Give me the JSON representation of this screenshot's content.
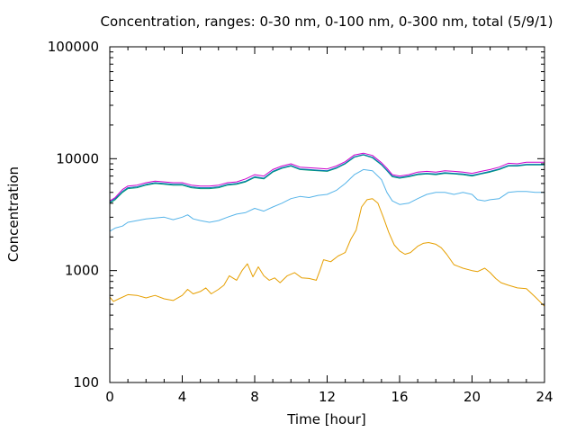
{
  "chart_data": {
    "type": "line",
    "title": "Concentration, ranges: 0-30 nm, 0-100 nm, 0-300 nm, total (5/9/1)",
    "xlabel": "Time [hour]",
    "ylabel": "Concentration",
    "xlim": [
      0,
      24
    ],
    "ylim": [
      100,
      100000
    ],
    "yscale": "log",
    "xticks": [
      0,
      4,
      8,
      12,
      16,
      20,
      24
    ],
    "xtick_labels": [
      "0",
      "4",
      "8",
      "12",
      "16",
      "20",
      "24"
    ],
    "yticks": [
      100,
      1000,
      10000,
      100000
    ],
    "ytick_labels": [
      "100",
      "1000",
      "10000",
      "100000"
    ],
    "grid": false,
    "legend": "none",
    "series": [
      {
        "color": "#e69f00",
        "points": [
          [
            0,
            580
          ],
          [
            0.2,
            530
          ],
          [
            0.5,
            560
          ],
          [
            1,
            610
          ],
          [
            1.5,
            600
          ],
          [
            2,
            570
          ],
          [
            2.5,
            600
          ],
          [
            3,
            560
          ],
          [
            3.5,
            540
          ],
          [
            4,
            600
          ],
          [
            4.3,
            680
          ],
          [
            4.6,
            620
          ],
          [
            5,
            650
          ],
          [
            5.3,
            700
          ],
          [
            5.6,
            620
          ],
          [
            6,
            680
          ],
          [
            6.3,
            740
          ],
          [
            6.6,
            900
          ],
          [
            7,
            820
          ],
          [
            7.3,
            1000
          ],
          [
            7.6,
            1150
          ],
          [
            7.9,
            880
          ],
          [
            8.2,
            1080
          ],
          [
            8.5,
            900
          ],
          [
            8.8,
            820
          ],
          [
            9.1,
            860
          ],
          [
            9.4,
            780
          ],
          [
            9.8,
            900
          ],
          [
            10.2,
            960
          ],
          [
            10.6,
            860
          ],
          [
            11,
            850
          ],
          [
            11.4,
            820
          ],
          [
            11.6,
            1000
          ],
          [
            11.8,
            1250
          ],
          [
            12.2,
            1200
          ],
          [
            12.6,
            1350
          ],
          [
            13,
            1450
          ],
          [
            13.3,
            1900
          ],
          [
            13.6,
            2300
          ],
          [
            13.9,
            3700
          ],
          [
            14.2,
            4300
          ],
          [
            14.5,
            4400
          ],
          [
            14.8,
            4000
          ],
          [
            15.1,
            3000
          ],
          [
            15.4,
            2200
          ],
          [
            15.7,
            1700
          ],
          [
            16,
            1500
          ],
          [
            16.3,
            1400
          ],
          [
            16.6,
            1450
          ],
          [
            17,
            1650
          ],
          [
            17.3,
            1750
          ],
          [
            17.6,
            1780
          ],
          [
            18,
            1720
          ],
          [
            18.3,
            1600
          ],
          [
            18.6,
            1400
          ],
          [
            19,
            1130
          ],
          [
            19.5,
            1050
          ],
          [
            20,
            1000
          ],
          [
            20.3,
            980
          ],
          [
            20.7,
            1050
          ],
          [
            21,
            960
          ],
          [
            21.3,
            850
          ],
          [
            21.6,
            780
          ],
          [
            22,
            740
          ],
          [
            22.5,
            700
          ],
          [
            23,
            690
          ],
          [
            23.5,
            580
          ],
          [
            24,
            480
          ]
        ]
      },
      {
        "color": "#56b4e9",
        "points": [
          [
            0,
            2250
          ],
          [
            0.3,
            2400
          ],
          [
            0.7,
            2500
          ],
          [
            1,
            2700
          ],
          [
            1.5,
            2800
          ],
          [
            2,
            2900
          ],
          [
            2.5,
            2950
          ],
          [
            3,
            3000
          ],
          [
            3.5,
            2850
          ],
          [
            4,
            3000
          ],
          [
            4.3,
            3150
          ],
          [
            4.6,
            2900
          ],
          [
            5,
            2800
          ],
          [
            5.5,
            2700
          ],
          [
            6,
            2800
          ],
          [
            6.5,
            3000
          ],
          [
            7,
            3200
          ],
          [
            7.5,
            3300
          ],
          [
            8,
            3600
          ],
          [
            8.5,
            3400
          ],
          [
            9,
            3700
          ],
          [
            9.5,
            4000
          ],
          [
            10,
            4400
          ],
          [
            10.5,
            4600
          ],
          [
            11,
            4500
          ],
          [
            11.5,
            4700
          ],
          [
            12,
            4800
          ],
          [
            12.5,
            5200
          ],
          [
            13,
            6000
          ],
          [
            13.5,
            7200
          ],
          [
            14,
            8000
          ],
          [
            14.5,
            7800
          ],
          [
            15,
            6500
          ],
          [
            15.3,
            5000
          ],
          [
            15.6,
            4200
          ],
          [
            16,
            3900
          ],
          [
            16.5,
            4000
          ],
          [
            17,
            4400
          ],
          [
            17.5,
            4800
          ],
          [
            18,
            5000
          ],
          [
            18.5,
            5000
          ],
          [
            19,
            4800
          ],
          [
            19.5,
            5000
          ],
          [
            20,
            4800
          ],
          [
            20.3,
            4300
          ],
          [
            20.7,
            4200
          ],
          [
            21,
            4300
          ],
          [
            21.5,
            4400
          ],
          [
            22,
            5000
          ],
          [
            22.5,
            5100
          ],
          [
            23,
            5100
          ],
          [
            23.5,
            5000
          ],
          [
            24,
            5000
          ]
        ]
      },
      {
        "color": "#009e73",
        "points": [
          [
            0,
            4000
          ],
          [
            0.3,
            4300
          ],
          [
            0.7,
            5000
          ],
          [
            1,
            5400
          ],
          [
            1.5,
            5500
          ],
          [
            2,
            5800
          ],
          [
            2.5,
            6000
          ],
          [
            3,
            5900
          ],
          [
            3.5,
            5800
          ],
          [
            4,
            5800
          ],
          [
            4.5,
            5500
          ],
          [
            5,
            5400
          ],
          [
            5.5,
            5400
          ],
          [
            6,
            5500
          ],
          [
            6.5,
            5800
          ],
          [
            7,
            5900
          ],
          [
            7.5,
            6200
          ],
          [
            8,
            6800
          ],
          [
            8.5,
            6600
          ],
          [
            9,
            7600
          ],
          [
            9.5,
            8200
          ],
          [
            10,
            8600
          ],
          [
            10.5,
            8000
          ],
          [
            11,
            7900
          ],
          [
            11.5,
            7800
          ],
          [
            12,
            7700
          ],
          [
            12.5,
            8200
          ],
          [
            13,
            9000
          ],
          [
            13.5,
            10300
          ],
          [
            14,
            10800
          ],
          [
            14.5,
            10200
          ],
          [
            15,
            8800
          ],
          [
            15.3,
            7800
          ],
          [
            15.6,
            6900
          ],
          [
            16,
            6700
          ],
          [
            16.5,
            6900
          ],
          [
            17,
            7200
          ],
          [
            17.5,
            7300
          ],
          [
            18,
            7200
          ],
          [
            18.5,
            7400
          ],
          [
            19,
            7300
          ],
          [
            19.5,
            7200
          ],
          [
            20,
            7000
          ],
          [
            20.5,
            7300
          ],
          [
            21,
            7600
          ],
          [
            21.5,
            8000
          ],
          [
            22,
            8600
          ],
          [
            22.5,
            8600
          ],
          [
            23,
            8800
          ],
          [
            23.5,
            8800
          ],
          [
            24,
            8800
          ]
        ]
      },
      {
        "color": "#0072b2",
        "points": [
          [
            0,
            4100
          ],
          [
            0.3,
            4400
          ],
          [
            0.7,
            5100
          ],
          [
            1,
            5500
          ],
          [
            1.5,
            5600
          ],
          [
            2,
            5900
          ],
          [
            2.5,
            6100
          ],
          [
            3,
            6000
          ],
          [
            3.5,
            5900
          ],
          [
            4,
            5900
          ],
          [
            4.5,
            5600
          ],
          [
            5,
            5500
          ],
          [
            5.5,
            5500
          ],
          [
            6,
            5600
          ],
          [
            6.5,
            5900
          ],
          [
            7,
            6000
          ],
          [
            7.5,
            6300
          ],
          [
            8,
            6900
          ],
          [
            8.5,
            6700
          ],
          [
            9,
            7700
          ],
          [
            9.5,
            8300
          ],
          [
            10,
            8700
          ],
          [
            10.5,
            8100
          ],
          [
            11,
            8000
          ],
          [
            11.5,
            7900
          ],
          [
            12,
            7800
          ],
          [
            12.5,
            8300
          ],
          [
            13,
            9100
          ],
          [
            13.5,
            10400
          ],
          [
            14,
            10900
          ],
          [
            14.5,
            10300
          ],
          [
            15,
            8900
          ],
          [
            15.3,
            7900
          ],
          [
            15.6,
            7000
          ],
          [
            16,
            6800
          ],
          [
            16.5,
            7000
          ],
          [
            17,
            7300
          ],
          [
            17.5,
            7400
          ],
          [
            18,
            7300
          ],
          [
            18.5,
            7500
          ],
          [
            19,
            7400
          ],
          [
            19.5,
            7300
          ],
          [
            20,
            7100
          ],
          [
            20.5,
            7400
          ],
          [
            21,
            7700
          ],
          [
            21.5,
            8100
          ],
          [
            22,
            8700
          ],
          [
            22.5,
            8700
          ],
          [
            23,
            8900
          ],
          [
            23.5,
            8900
          ],
          [
            24,
            8900
          ]
        ]
      },
      {
        "color": "#cc00cc",
        "points": [
          [
            0,
            4200
          ],
          [
            0.3,
            4500
          ],
          [
            0.7,
            5300
          ],
          [
            1,
            5700
          ],
          [
            1.5,
            5800
          ],
          [
            2,
            6100
          ],
          [
            2.5,
            6300
          ],
          [
            3,
            6200
          ],
          [
            3.5,
            6100
          ],
          [
            4,
            6100
          ],
          [
            4.5,
            5800
          ],
          [
            5,
            5700
          ],
          [
            5.5,
            5700
          ],
          [
            6,
            5800
          ],
          [
            6.5,
            6100
          ],
          [
            7,
            6200
          ],
          [
            7.5,
            6600
          ],
          [
            8,
            7200
          ],
          [
            8.5,
            7000
          ],
          [
            9,
            8000
          ],
          [
            9.5,
            8600
          ],
          [
            10,
            9000
          ],
          [
            10.5,
            8400
          ],
          [
            11,
            8300
          ],
          [
            11.5,
            8200
          ],
          [
            12,
            8100
          ],
          [
            12.5,
            8600
          ],
          [
            13,
            9400
          ],
          [
            13.5,
            10800
          ],
          [
            14,
            11200
          ],
          [
            14.5,
            10700
          ],
          [
            15,
            9200
          ],
          [
            15.3,
            8200
          ],
          [
            15.6,
            7200
          ],
          [
            16,
            7000
          ],
          [
            16.5,
            7200
          ],
          [
            17,
            7600
          ],
          [
            17.5,
            7700
          ],
          [
            18,
            7600
          ],
          [
            18.5,
            7800
          ],
          [
            19,
            7700
          ],
          [
            19.5,
            7600
          ],
          [
            20,
            7400
          ],
          [
            20.5,
            7700
          ],
          [
            21,
            8000
          ],
          [
            21.5,
            8400
          ],
          [
            22,
            9100
          ],
          [
            22.5,
            9000
          ],
          [
            23,
            9300
          ],
          [
            23.5,
            9300
          ],
          [
            24,
            9300
          ]
        ]
      }
    ]
  }
}
